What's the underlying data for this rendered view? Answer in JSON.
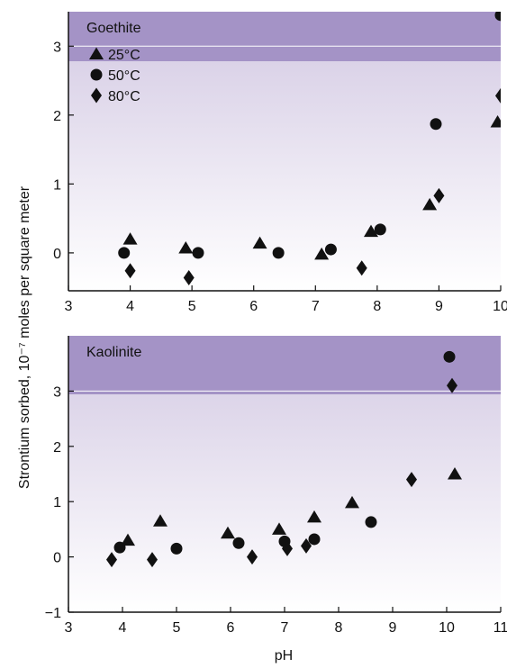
{
  "figure": {
    "shared_ylabel": "Strontium sorbed, 10⁻⁷ moles per square meter",
    "shared_xlabel": "pH"
  },
  "colors": {
    "band_top": "#a493c6",
    "band_bottom": "#ffffff",
    "marker": "#111111",
    "axis": "#111111"
  },
  "chart_data": [
    {
      "type": "scatter",
      "title": "Goethite",
      "xlabel": "",
      "ylabel": "",
      "xlim": [
        3,
        10
      ],
      "ylim": [
        -0.55,
        3.5
      ],
      "xticks": [
        3,
        4,
        5,
        6,
        7,
        8,
        9,
        10
      ],
      "xtick_labels": [
        "3",
        "4",
        "5",
        "6",
        "7",
        "8",
        "9",
        "10"
      ],
      "yticks": [
        0,
        1,
        2,
        3
      ],
      "ytick_labels": [
        "0",
        "1",
        "2",
        "3"
      ],
      "legend_position": "top-left",
      "series": [
        {
          "name": "25°C",
          "marker": "triangle",
          "points": [
            [
              4.0,
              0.2
            ],
            [
              4.9,
              0.07
            ],
            [
              6.1,
              0.14
            ],
            [
              7.1,
              -0.02
            ],
            [
              7.9,
              0.31
            ],
            [
              8.85,
              0.7
            ],
            [
              9.95,
              1.9
            ]
          ]
        },
        {
          "name": "50°C",
          "marker": "circle",
          "points": [
            [
              3.9,
              0.0
            ],
            [
              5.1,
              0.0
            ],
            [
              6.4,
              0.0
            ],
            [
              7.25,
              0.05
            ],
            [
              8.05,
              0.34
            ],
            [
              8.95,
              1.87
            ],
            [
              10.0,
              3.45
            ]
          ]
        },
        {
          "name": "80°C",
          "marker": "diamond",
          "points": [
            [
              4.0,
              -0.26
            ],
            [
              4.95,
              -0.36
            ],
            [
              7.75,
              -0.22
            ],
            [
              9.0,
              0.83
            ],
            [
              10.0,
              2.28
            ]
          ]
        }
      ]
    },
    {
      "type": "scatter",
      "title": "Kaolinite",
      "xlabel": "pH",
      "ylabel": "",
      "xlim": [
        3,
        11
      ],
      "ylim": [
        -1,
        4
      ],
      "xticks": [
        3,
        4,
        5,
        6,
        7,
        8,
        9,
        10,
        11
      ],
      "xtick_labels": [
        "3",
        "4",
        "5",
        "6",
        "7",
        "8",
        "9",
        "10",
        "11"
      ],
      "yticks": [
        -1,
        0,
        1,
        2,
        3
      ],
      "ytick_labels": [
        "−1",
        "0",
        "1",
        "2",
        "3"
      ],
      "series": [
        {
          "marker": "triangle",
          "points": [
            [
              4.1,
              0.3
            ],
            [
              4.7,
              0.65
            ],
            [
              5.95,
              0.43
            ],
            [
              6.9,
              0.5
            ],
            [
              7.55,
              0.72
            ],
            [
              8.25,
              0.98
            ],
            [
              10.15,
              1.5
            ]
          ]
        },
        {
          "marker": "circle",
          "points": [
            [
              3.95,
              0.17
            ],
            [
              5.0,
              0.15
            ],
            [
              6.15,
              0.25
            ],
            [
              7.0,
              0.28
            ],
            [
              7.55,
              0.32
            ],
            [
              8.6,
              0.63
            ],
            [
              10.05,
              3.62
            ]
          ]
        },
        {
          "marker": "diamond",
          "points": [
            [
              3.8,
              -0.05
            ],
            [
              4.55,
              -0.05
            ],
            [
              6.4,
              0.0
            ],
            [
              7.05,
              0.15
            ],
            [
              7.4,
              0.2
            ],
            [
              9.35,
              1.4
            ],
            [
              10.1,
              3.1
            ]
          ]
        }
      ]
    }
  ]
}
